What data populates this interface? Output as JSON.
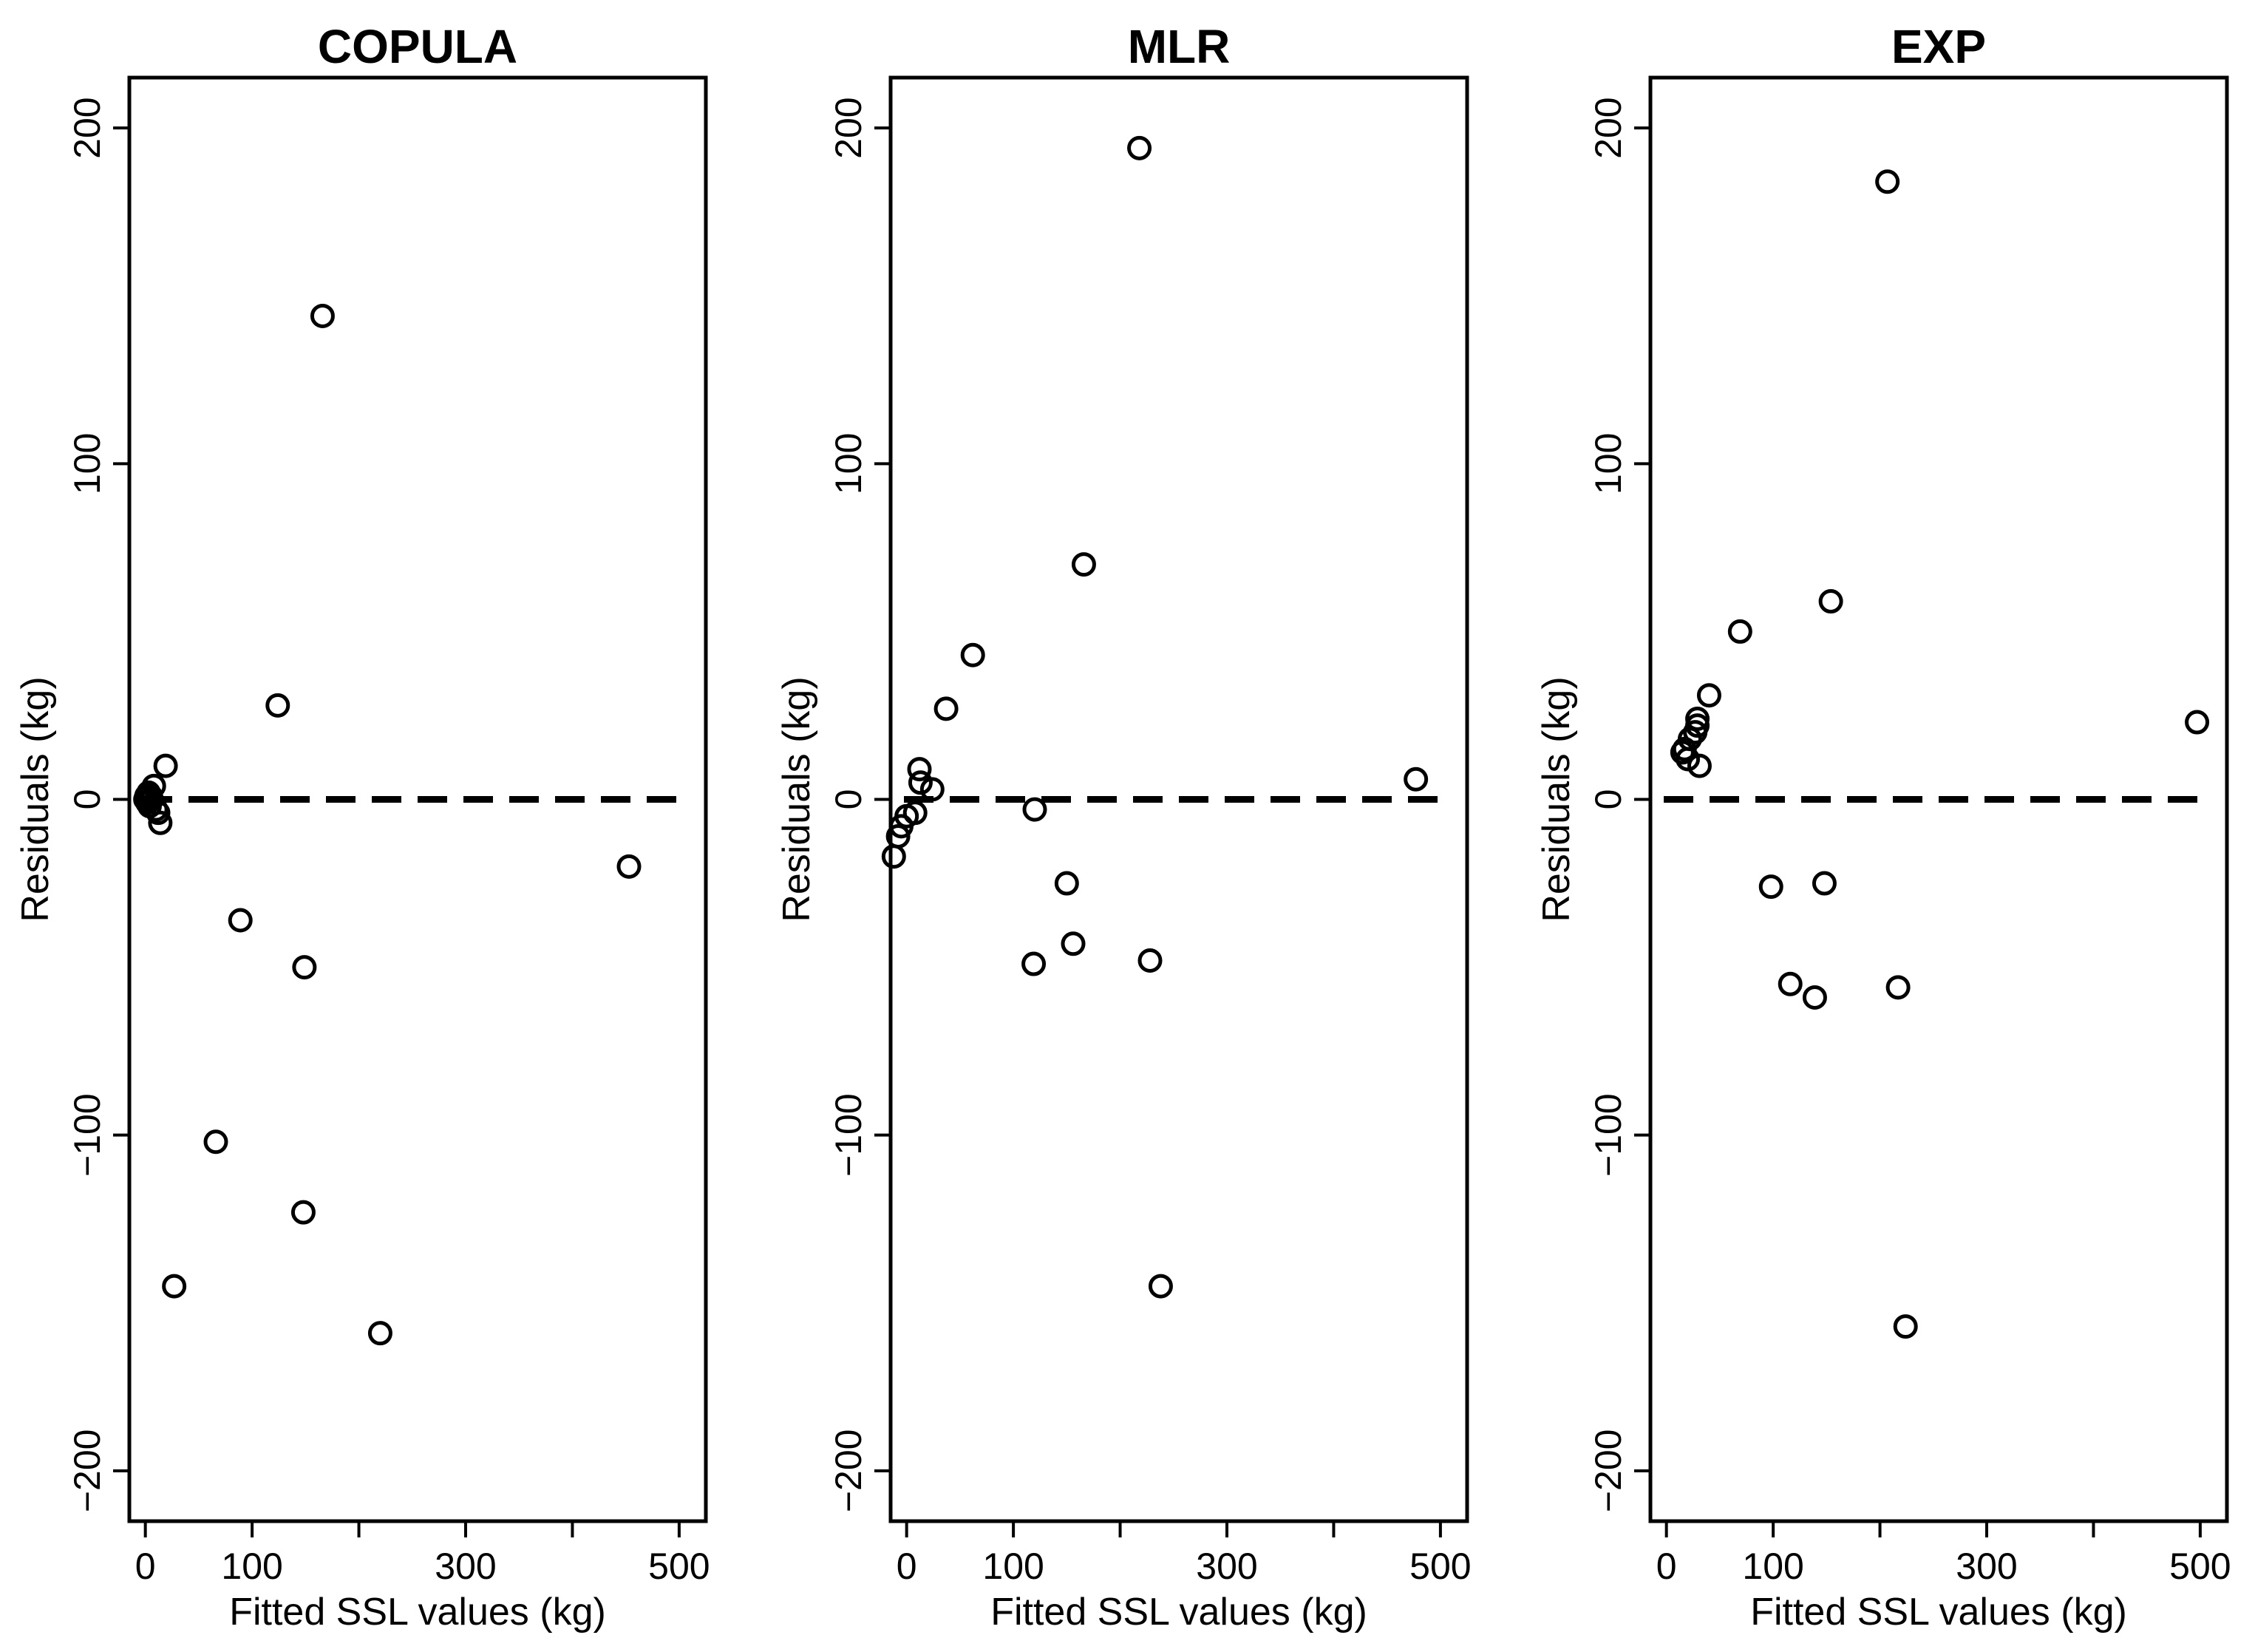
{
  "chart_data": [
    {
      "type": "scatter",
      "title": "COPULA",
      "xlabel": "Fitted SSL values (kg)",
      "ylabel": "Residuals (kg)",
      "xlim": [
        -15,
        525
      ],
      "ylim": [
        -215,
        215
      ],
      "xticks": [
        0,
        100,
        300,
        500
      ],
      "yticks": [
        -200,
        -100,
        0,
        100,
        200
      ],
      "reference_line": 0,
      "points": [
        {
          "x": 0,
          "y": 0
        },
        {
          "x": 1,
          "y": 1
        },
        {
          "x": 2,
          "y": -1
        },
        {
          "x": 3,
          "y": 2
        },
        {
          "x": 4,
          "y": -2
        },
        {
          "x": 5,
          "y": 1
        },
        {
          "x": 6,
          "y": 0
        },
        {
          "x": 8,
          "y": 4
        },
        {
          "x": 10,
          "y": -3
        },
        {
          "x": 12,
          "y": -4
        },
        {
          "x": 14,
          "y": -7
        },
        {
          "x": 19,
          "y": 10
        },
        {
          "x": 27,
          "y": -145
        },
        {
          "x": 66,
          "y": -102
        },
        {
          "x": 89,
          "y": -36
        },
        {
          "x": 124,
          "y": 28
        },
        {
          "x": 148,
          "y": -123
        },
        {
          "x": 149,
          "y": -50
        },
        {
          "x": 166,
          "y": 144
        },
        {
          "x": 220,
          "y": -159
        },
        {
          "x": 453,
          "y": -20
        }
      ]
    },
    {
      "type": "scatter",
      "title": "MLR",
      "xlabel": "Fitted SSL values (kg)",
      "ylabel": "Residuals (kg)",
      "xlim": [
        -15,
        525
      ],
      "ylim": [
        -215,
        215
      ],
      "xticks": [
        0,
        100,
        300,
        500
      ],
      "yticks": [
        -200,
        -100,
        0,
        100,
        200
      ],
      "reference_line": 0,
      "points": [
        {
          "x": -12,
          "y": -17
        },
        {
          "x": -8,
          "y": -11
        },
        {
          "x": -5,
          "y": -8
        },
        {
          "x": 0,
          "y": -5
        },
        {
          "x": 8,
          "y": -4
        },
        {
          "x": 12,
          "y": 9
        },
        {
          "x": 13,
          "y": 5
        },
        {
          "x": 24,
          "y": 3
        },
        {
          "x": 37,
          "y": 27
        },
        {
          "x": 62,
          "y": 43
        },
        {
          "x": 120,
          "y": -3
        },
        {
          "x": 119,
          "y": -49
        },
        {
          "x": 150,
          "y": -25
        },
        {
          "x": 156,
          "y": -43
        },
        {
          "x": 166,
          "y": 70
        },
        {
          "x": 218,
          "y": 194
        },
        {
          "x": 228,
          "y": -48
        },
        {
          "x": 238,
          "y": -145
        },
        {
          "x": 477,
          "y": 6
        }
      ]
    },
    {
      "type": "scatter",
      "title": "EXP",
      "xlabel": "Fitted SSL values (kg)",
      "ylabel": "Residuals (kg)",
      "xlim": [
        -15,
        525
      ],
      "ylim": [
        -215,
        215
      ],
      "xticks": [
        0,
        100,
        300,
        500
      ],
      "yticks": [
        -200,
        -100,
        0,
        100,
        200
      ],
      "reference_line": 0,
      "points": [
        {
          "x": 15,
          "y": 14
        },
        {
          "x": 17,
          "y": 15
        },
        {
          "x": 20,
          "y": 12
        },
        {
          "x": 22,
          "y": 18
        },
        {
          "x": 27,
          "y": 20
        },
        {
          "x": 29,
          "y": 22
        },
        {
          "x": 29,
          "y": 24
        },
        {
          "x": 31,
          "y": 10
        },
        {
          "x": 40,
          "y": 31
        },
        {
          "x": 69,
          "y": 50
        },
        {
          "x": 98,
          "y": -26
        },
        {
          "x": 116,
          "y": -55
        },
        {
          "x": 139,
          "y": -59
        },
        {
          "x": 148,
          "y": -25
        },
        {
          "x": 154,
          "y": 59
        },
        {
          "x": 207,
          "y": 184
        },
        {
          "x": 217,
          "y": -56
        },
        {
          "x": 224,
          "y": -157
        },
        {
          "x": 497,
          "y": 23
        }
      ]
    }
  ]
}
